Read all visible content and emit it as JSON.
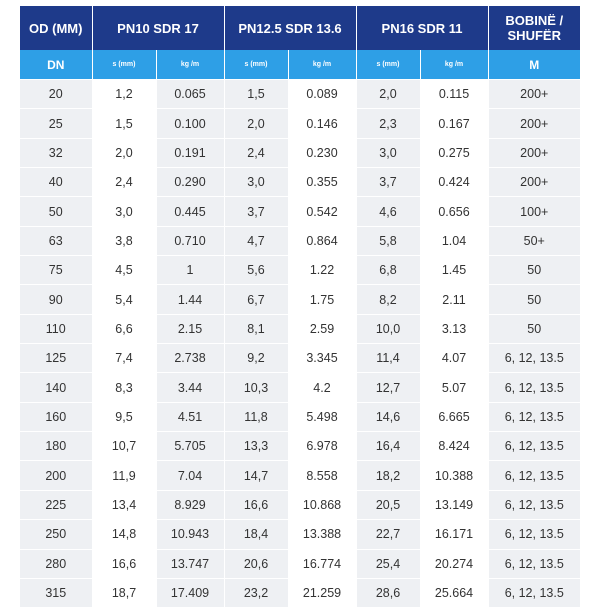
{
  "header": {
    "od": "OD (MM)",
    "groups": [
      "PN10 SDR 17",
      "PN12.5 SDR 13.6",
      "PN16 SDR 11"
    ],
    "coil": "BOBINË / SHUFËR",
    "dn": "DN",
    "s_label": "s (mm)",
    "kg_label": "kg /m",
    "m_label": "M"
  },
  "rows": [
    {
      "dn": "20",
      "s1": "1,2",
      "k1": "0.065",
      "s2": "1,5",
      "k2": "0.089",
      "s3": "2,0",
      "k3": "0.115",
      "m": "200+"
    },
    {
      "dn": "25",
      "s1": "1,5",
      "k1": "0.100",
      "s2": "2,0",
      "k2": "0.146",
      "s3": "2,3",
      "k3": "0.167",
      "m": "200+"
    },
    {
      "dn": "32",
      "s1": "2,0",
      "k1": "0.191",
      "s2": "2,4",
      "k2": "0.230",
      "s3": "3,0",
      "k3": "0.275",
      "m": "200+"
    },
    {
      "dn": "40",
      "s1": "2,4",
      "k1": "0.290",
      "s2": "3,0",
      "k2": "0.355",
      "s3": "3,7",
      "k3": "0.424",
      "m": "200+"
    },
    {
      "dn": "50",
      "s1": "3,0",
      "k1": "0.445",
      "s2": "3,7",
      "k2": "0.542",
      "s3": "4,6",
      "k3": "0.656",
      "m": "100+"
    },
    {
      "dn": "63",
      "s1": "3,8",
      "k1": "0.710",
      "s2": "4,7",
      "k2": "0.864",
      "s3": "5,8",
      "k3": "1.04",
      "m": "50+"
    },
    {
      "dn": "75",
      "s1": "4,5",
      "k1": "1",
      "s2": "5,6",
      "k2": "1.22",
      "s3": "6,8",
      "k3": "1.45",
      "m": "50"
    },
    {
      "dn": "90",
      "s1": "5,4",
      "k1": "1.44",
      "s2": "6,7",
      "k2": "1.75",
      "s3": "8,2",
      "k3": "2.11",
      "m": "50"
    },
    {
      "dn": "110",
      "s1": "6,6",
      "k1": "2.15",
      "s2": "8,1",
      "k2": "2.59",
      "s3": "10,0",
      "k3": "3.13",
      "m": "50"
    },
    {
      "dn": "125",
      "s1": "7,4",
      "k1": "2.738",
      "s2": "9,2",
      "k2": "3.345",
      "s3": "11,4",
      "k3": "4.07",
      "m": "6, 12, 13.5"
    },
    {
      "dn": "140",
      "s1": "8,3",
      "k1": "3.44",
      "s2": "10,3",
      "k2": "4.2",
      "s3": "12,7",
      "k3": "5.07",
      "m": "6, 12, 13.5"
    },
    {
      "dn": "160",
      "s1": "9,5",
      "k1": "4.51",
      "s2": "11,8",
      "k2": "5.498",
      "s3": "14,6",
      "k3": "6.665",
      "m": "6, 12, 13.5"
    },
    {
      "dn": "180",
      "s1": "10,7",
      "k1": "5.705",
      "s2": "13,3",
      "k2": "6.978",
      "s3": "16,4",
      "k3": "8.424",
      "m": "6, 12, 13.5"
    },
    {
      "dn": "200",
      "s1": "11,9",
      "k1": "7.04",
      "s2": "14,7",
      "k2": "8.558",
      "s3": "18,2",
      "k3": "10.388",
      "m": "6, 12, 13.5"
    },
    {
      "dn": "225",
      "s1": "13,4",
      "k1": "8.929",
      "s2": "16,6",
      "k2": "10.868",
      "s3": "20,5",
      "k3": "13.149",
      "m": "6, 12, 13.5"
    },
    {
      "dn": "250",
      "s1": "14,8",
      "k1": "10.943",
      "s2": "18,4",
      "k2": "13.388",
      "s3": "22,7",
      "k3": "16.171",
      "m": "6, 12, 13.5"
    },
    {
      "dn": "280",
      "s1": "16,6",
      "k1": "13.747",
      "s2": "20,6",
      "k2": "16.774",
      "s3": "25,4",
      "k3": "20.274",
      "m": "6, 12, 13.5"
    },
    {
      "dn": "315",
      "s1": "18,7",
      "k1": "17.409",
      "s2": "23,2",
      "k2": "21.259",
      "s3": "28,6",
      "k3": "25.664",
      "m": "6, 12, 13.5"
    }
  ]
}
